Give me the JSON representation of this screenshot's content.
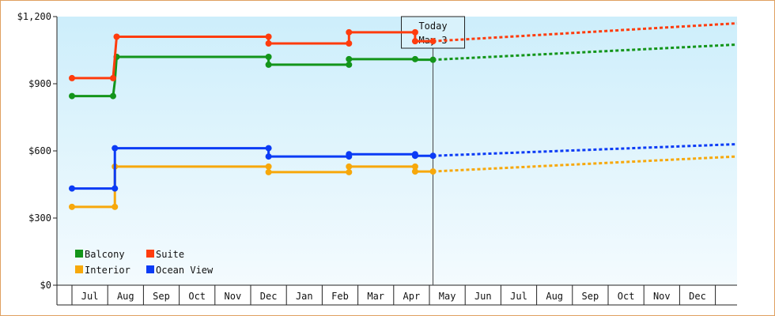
{
  "chart_data": {
    "type": "line",
    "x_unit": "month",
    "x_start": "Jun",
    "x_end": "Dec",
    "x_tick_labels": [
      "Jul",
      "Aug",
      "Sep",
      "Oct",
      "Nov",
      "Dec",
      "Jan",
      "Feb",
      "Mar",
      "Apr",
      "May",
      "Jun",
      "Jul",
      "Aug",
      "Sep",
      "Oct",
      "Nov",
      "Dec"
    ],
    "y_tick_labels": [
      "$0",
      "$300",
      "$600",
      "$900",
      "$1,200"
    ],
    "y_ticks": [
      0,
      300,
      600,
      900,
      1200
    ],
    "ylim": [
      0,
      1200
    ],
    "grid": false,
    "legend_position": "bottom-left",
    "today_marker": {
      "line1": "Today",
      "line2": "May 3",
      "x": 10.1
    },
    "series": [
      {
        "name": "Balcony",
        "color": "#13951a",
        "points": [
          [
            0,
            845
          ],
          [
            1.15,
            845
          ],
          [
            1.2,
            910
          ],
          [
            1.25,
            1020
          ],
          [
            5.5,
            1020
          ],
          [
            5.5,
            985
          ],
          [
            7.75,
            985
          ],
          [
            7.75,
            1010
          ],
          [
            9.6,
            1010
          ],
          [
            9.6,
            1007
          ],
          [
            10.1,
            1007
          ]
        ],
        "markers": [
          [
            0,
            845
          ],
          [
            1.15,
            845
          ],
          [
            1.25,
            1020
          ],
          [
            5.5,
            1020
          ],
          [
            5.5,
            985
          ],
          [
            7.75,
            985
          ],
          [
            7.75,
            1010
          ],
          [
            9.6,
            1010
          ],
          [
            10.1,
            1007
          ]
        ],
        "forecast": [
          [
            10.1,
            1007
          ],
          [
            20,
            1075
          ]
        ]
      },
      {
        "name": "Suite",
        "color": "#ff3c0d",
        "points": [
          [
            0,
            925
          ],
          [
            1.15,
            925
          ],
          [
            1.25,
            1110
          ],
          [
            5.5,
            1110
          ],
          [
            5.5,
            1080
          ],
          [
            7.75,
            1080
          ],
          [
            7.75,
            1130
          ],
          [
            9.6,
            1130
          ],
          [
            9.6,
            1090
          ],
          [
            10.1,
            1090
          ]
        ],
        "markers": [
          [
            0,
            925
          ],
          [
            1.15,
            925
          ],
          [
            1.25,
            1110
          ],
          [
            5.5,
            1110
          ],
          [
            5.5,
            1080
          ],
          [
            7.75,
            1080
          ],
          [
            7.75,
            1130
          ],
          [
            9.6,
            1130
          ],
          [
            9.6,
            1090
          ],
          [
            10.1,
            1090
          ]
        ],
        "forecast": [
          [
            10.1,
            1090
          ],
          [
            20,
            1170
          ]
        ]
      },
      {
        "name": "Interior",
        "color": "#f7a80b",
        "points": [
          [
            0,
            350
          ],
          [
            1.2,
            350
          ],
          [
            1.2,
            530
          ],
          [
            5.5,
            530
          ],
          [
            5.5,
            505
          ],
          [
            7.75,
            505
          ],
          [
            7.75,
            530
          ],
          [
            9.6,
            530
          ],
          [
            9.6,
            508
          ],
          [
            10.1,
            508
          ]
        ],
        "markers": [
          [
            0,
            350
          ],
          [
            1.2,
            350
          ],
          [
            1.2,
            530
          ],
          [
            5.5,
            530
          ],
          [
            5.5,
            505
          ],
          [
            7.75,
            505
          ],
          [
            7.75,
            530
          ],
          [
            9.6,
            530
          ],
          [
            9.6,
            508
          ],
          [
            10.1,
            508
          ]
        ],
        "forecast": [
          [
            10.1,
            508
          ],
          [
            20,
            575
          ]
        ]
      },
      {
        "name": "Ocean View",
        "color": "#0b3bf5",
        "points": [
          [
            0,
            432
          ],
          [
            1.2,
            432
          ],
          [
            1.2,
            612
          ],
          [
            5.5,
            612
          ],
          [
            5.5,
            575
          ],
          [
            7.75,
            575
          ],
          [
            7.75,
            585
          ],
          [
            9.6,
            585
          ],
          [
            9.6,
            578
          ],
          [
            10.1,
            578
          ]
        ],
        "markers": [
          [
            0,
            432
          ],
          [
            1.2,
            432
          ],
          [
            1.2,
            612
          ],
          [
            5.5,
            612
          ],
          [
            5.5,
            575
          ],
          [
            7.75,
            575
          ],
          [
            7.75,
            585
          ],
          [
            9.6,
            585
          ],
          [
            9.6,
            578
          ],
          [
            10.1,
            578
          ]
        ],
        "forecast": [
          [
            10.1,
            578
          ],
          [
            20,
            630
          ]
        ]
      }
    ]
  }
}
